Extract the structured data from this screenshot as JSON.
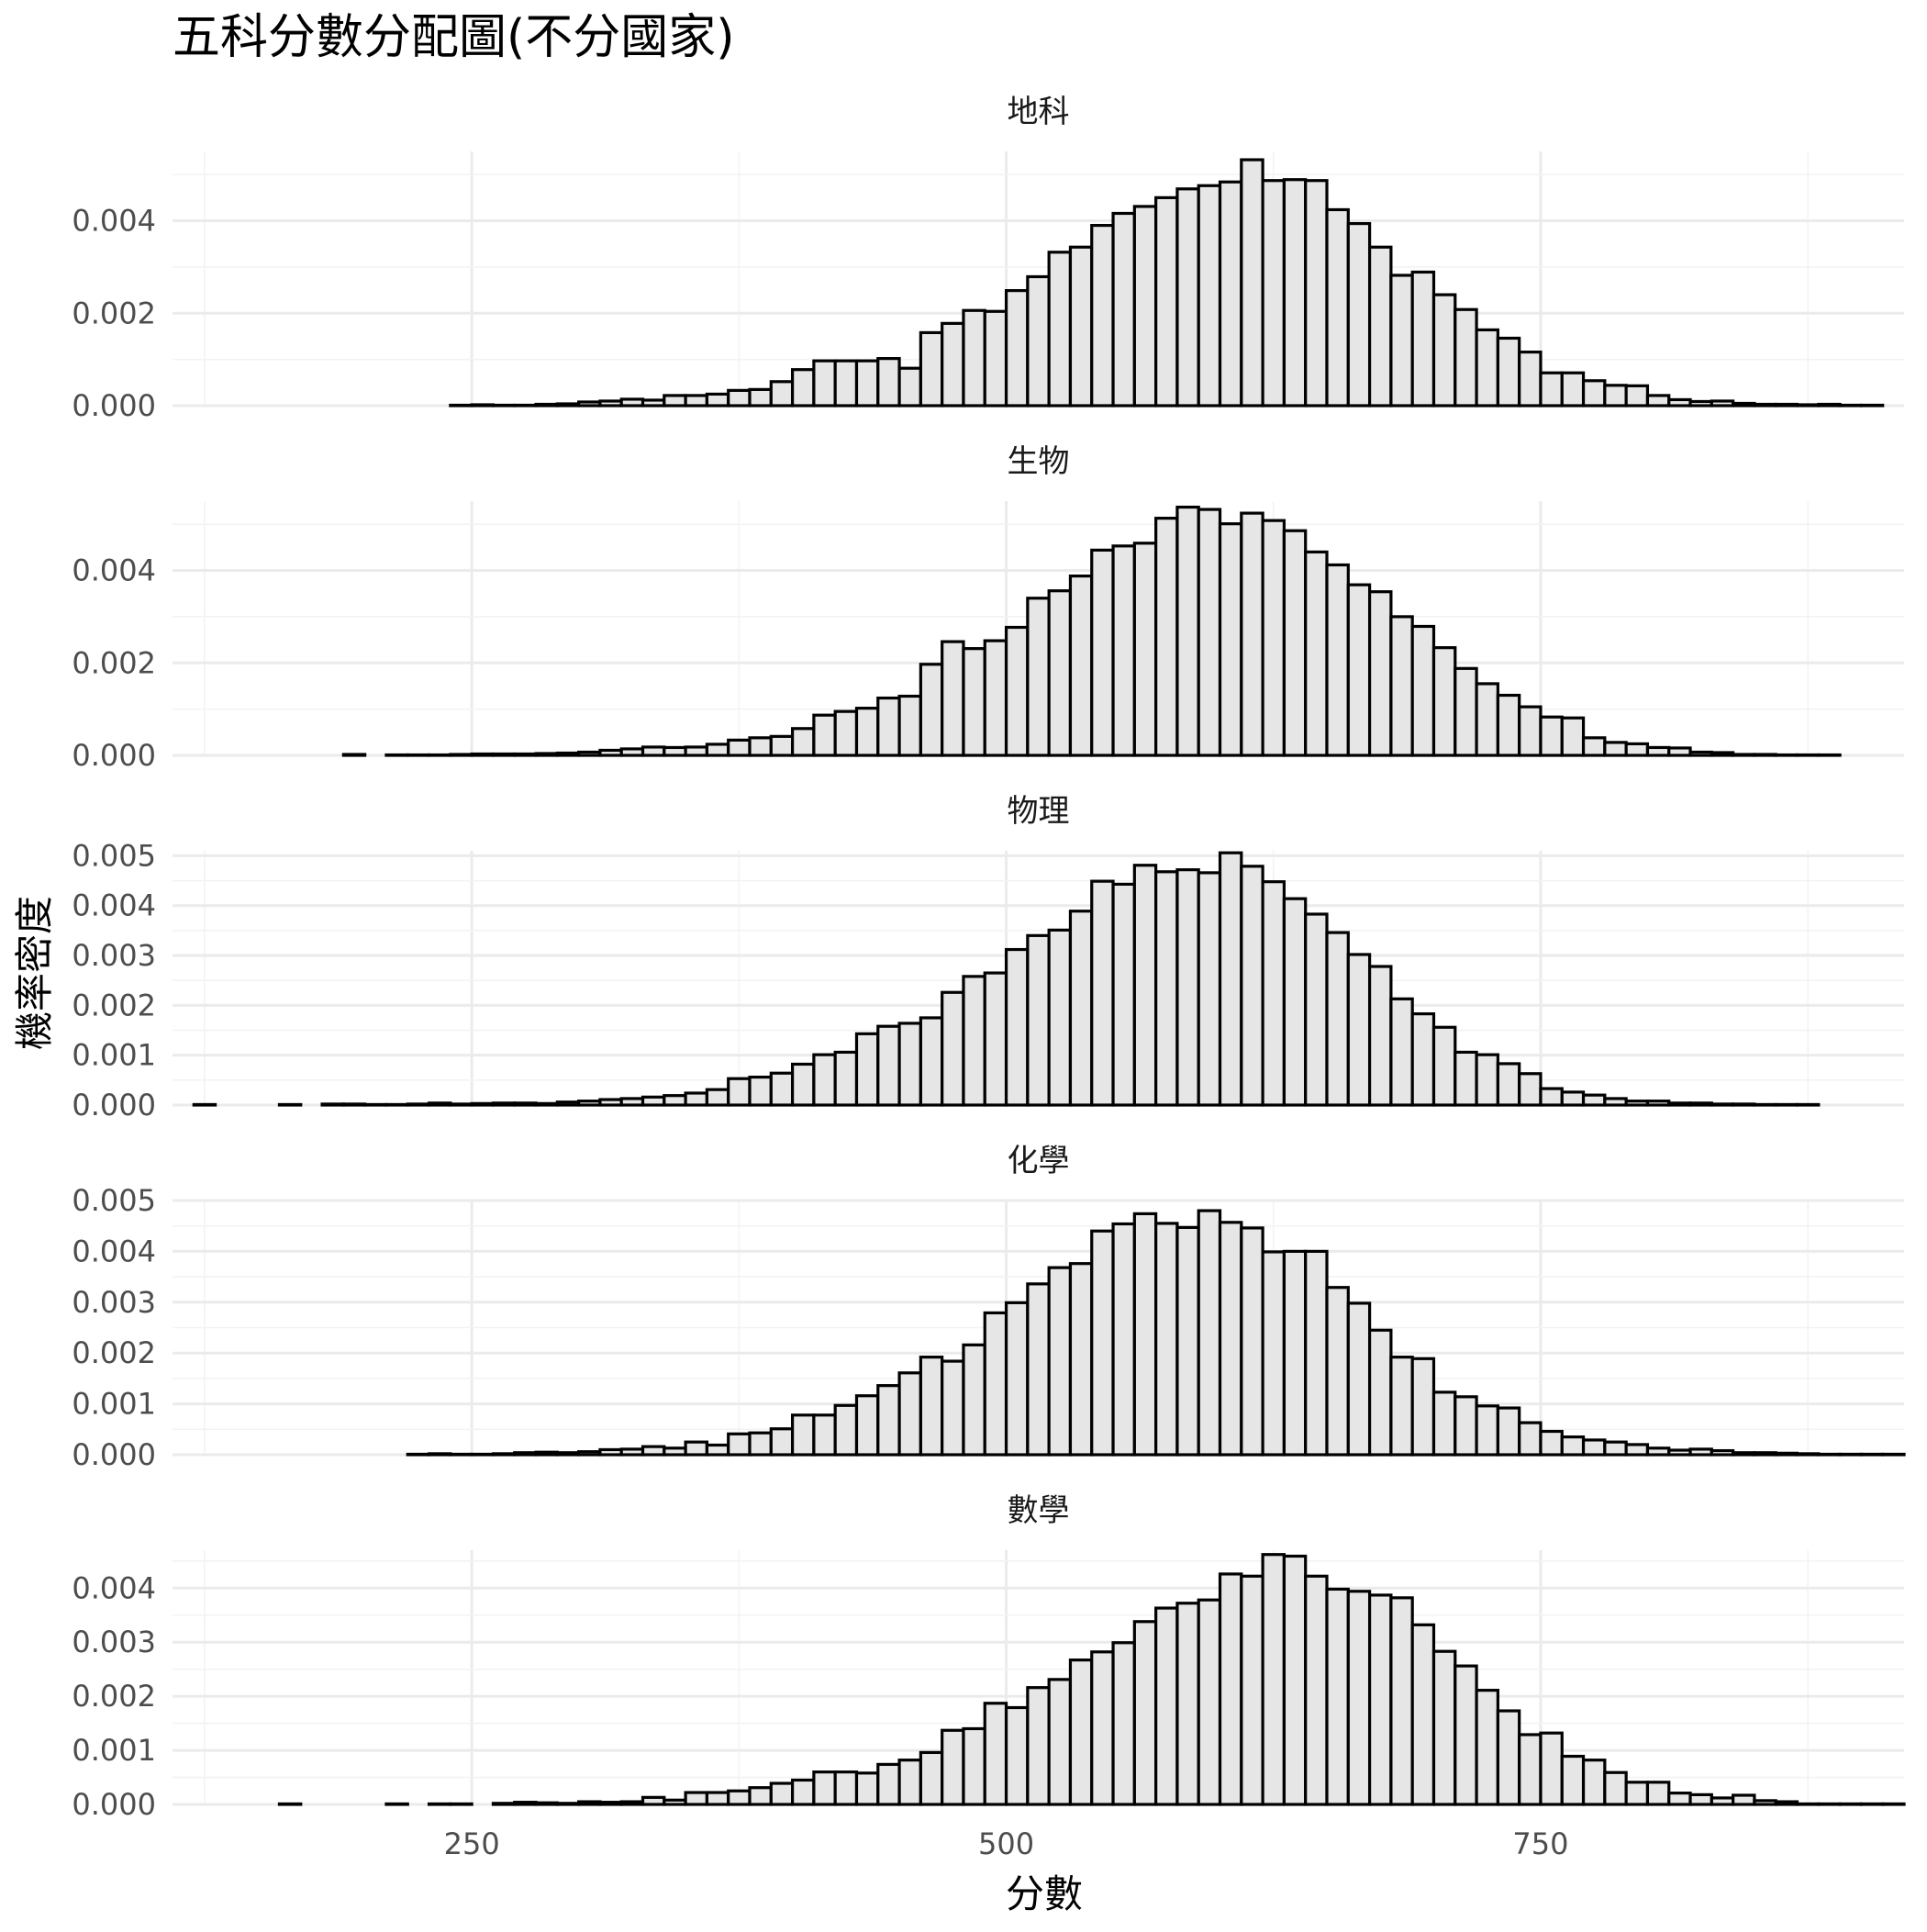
{
  "chart_data": {
    "type": "bar",
    "title": "五科分數分配圖(不分國家)",
    "xlabel": "分數",
    "ylabel": "機率密度",
    "xlim": [
      110,
      920
    ],
    "x_ticks": [
      250,
      500,
      750
    ],
    "x_tick_labels": [
      "250",
      "500",
      "750"
    ],
    "bin_width": 10,
    "grid": true,
    "legend": "none",
    "colors": {
      "bar_fill": "#e6e6e6",
      "bar_stroke": "#000000",
      "grid": "#ebebeb"
    },
    "panels": [
      {
        "name": "地科",
        "ylim": [
          0,
          0.0055
        ],
        "y_ticks": [
          0,
          0.002,
          0.004
        ],
        "y_tick_labels": [
          "0.000",
          "0.002",
          "0.004"
        ],
        "bin_starts": [
          120,
          130,
          140,
          150,
          160,
          170,
          180,
          190,
          200,
          210,
          220,
          230,
          240,
          250,
          260,
          270,
          280,
          290,
          300,
          310,
          320,
          330,
          340,
          350,
          360,
          370,
          380,
          390,
          400,
          410,
          420,
          430,
          440,
          450,
          460,
          470,
          480,
          490,
          500,
          510,
          520,
          530,
          540,
          550,
          560,
          570,
          580,
          590,
          600,
          610,
          620,
          630,
          640,
          650,
          660,
          670,
          680,
          690,
          700,
          710,
          720,
          730,
          740,
          750,
          760,
          770,
          780,
          790,
          800,
          810,
          820,
          830,
          840,
          850,
          860,
          870,
          880,
          890,
          900
        ],
        "density": [
          0,
          0,
          0,
          0,
          0,
          0,
          0,
          0,
          0,
          0,
          0,
          0,
          1e-05,
          2e-05,
          1e-05,
          1e-05,
          3e-05,
          4e-05,
          8e-05,
          0.0001,
          0.00014,
          0.00012,
          0.00022,
          0.00022,
          0.00025,
          0.00033,
          0.00035,
          0.00052,
          0.00078,
          0.00097,
          0.00097,
          0.00097,
          0.00102,
          0.00081,
          0.00158,
          0.00178,
          0.00206,
          0.00204,
          0.00249,
          0.00279,
          0.00332,
          0.00343,
          0.0039,
          0.00416,
          0.00431,
          0.0045,
          0.00469,
          0.00476,
          0.00484,
          0.00532,
          0.00487,
          0.00489,
          0.00487,
          0.00424,
          0.00394,
          0.00343,
          0.00282,
          0.00289,
          0.0024,
          0.00208,
          0.00164,
          0.00146,
          0.00116,
          0.00071,
          0.00071,
          0.00054,
          0.00044,
          0.00043,
          0.00022,
          0.00013,
          9e-05,
          0.0001,
          5e-05,
          3e-05,
          3e-05,
          2e-05,
          3e-05,
          1e-05,
          1e-05
        ]
      },
      {
        "name": "生物",
        "ylim": [
          0,
          0.0055
        ],
        "y_ticks": [
          0,
          0.002,
          0.004
        ],
        "y_tick_labels": [
          "0.000",
          "0.002",
          "0.004"
        ],
        "bin_starts": [
          120,
          130,
          140,
          150,
          160,
          170,
          180,
          190,
          200,
          210,
          220,
          230,
          240,
          250,
          260,
          270,
          280,
          290,
          300,
          310,
          320,
          330,
          340,
          350,
          360,
          370,
          380,
          390,
          400,
          410,
          420,
          430,
          440,
          450,
          460,
          470,
          480,
          490,
          500,
          510,
          520,
          530,
          540,
          550,
          560,
          570,
          580,
          590,
          600,
          610,
          620,
          630,
          640,
          650,
          660,
          670,
          680,
          690,
          700,
          710,
          720,
          730,
          740,
          750,
          760,
          770,
          780,
          790,
          800,
          810,
          820,
          830,
          840,
          850,
          860,
          870,
          880,
          890,
          900
        ],
        "density": [
          0,
          0,
          0,
          0,
          0,
          0,
          0,
          2e-05,
          0,
          1e-05,
          1e-05,
          1e-05,
          2e-05,
          3e-05,
          3e-05,
          3e-05,
          4e-05,
          5e-05,
          7e-05,
          0.00011,
          0.00014,
          0.00018,
          0.00017,
          0.00018,
          0.00024,
          0.00033,
          0.00038,
          0.00041,
          0.00058,
          0.00087,
          0.00095,
          0.00102,
          0.00124,
          0.00128,
          0.00197,
          0.00246,
          0.00231,
          0.00248,
          0.00277,
          0.0034,
          0.00356,
          0.00388,
          0.00444,
          0.00453,
          0.00459,
          0.00513,
          0.00537,
          0.00532,
          0.00501,
          0.00524,
          0.00508,
          0.00486,
          0.0044,
          0.00412,
          0.00369,
          0.00354,
          0.003,
          0.00279,
          0.00233,
          0.00188,
          0.00155,
          0.0013,
          0.00105,
          0.00083,
          0.00081,
          0.00038,
          0.00028,
          0.00025,
          0.00017,
          0.00016,
          7e-05,
          6e-05,
          2e-05,
          2e-05,
          1e-05,
          1e-05,
          1e-05,
          0,
          0
        ]
      },
      {
        "name": "物理",
        "ylim": [
          0,
          0.0051
        ],
        "y_ticks": [
          0,
          0.001,
          0.002,
          0.003,
          0.004,
          0.005
        ],
        "y_tick_labels": [
          "0.000",
          "0.001",
          "0.002",
          "0.003",
          "0.004",
          "0.005"
        ],
        "bin_starts": [
          120,
          130,
          140,
          150,
          160,
          170,
          180,
          190,
          200,
          210,
          220,
          230,
          240,
          250,
          260,
          270,
          280,
          290,
          300,
          310,
          320,
          330,
          340,
          350,
          360,
          370,
          380,
          390,
          400,
          410,
          420,
          430,
          440,
          450,
          460,
          470,
          480,
          490,
          500,
          510,
          520,
          530,
          540,
          550,
          560,
          570,
          580,
          590,
          600,
          610,
          620,
          630,
          640,
          650,
          660,
          670,
          680,
          690,
          700,
          710,
          720,
          730,
          740,
          750,
          760,
          770,
          780,
          790,
          800,
          810,
          820,
          830,
          840,
          850,
          860,
          870,
          880,
          890,
          900
        ],
        "density": [
          1e-05,
          0,
          0,
          0,
          1e-05,
          0,
          2e-05,
          2e-05,
          1e-05,
          1e-05,
          2e-05,
          4e-05,
          2e-05,
          3e-05,
          4e-05,
          4e-05,
          3e-05,
          6e-05,
          8e-05,
          0.00011,
          0.00013,
          0.00016,
          0.00019,
          0.00024,
          0.00031,
          0.00053,
          0.00056,
          0.00064,
          0.00082,
          0.00101,
          0.00106,
          0.00143,
          0.00158,
          0.00164,
          0.00175,
          0.00226,
          0.00258,
          0.00265,
          0.00312,
          0.0034,
          0.00351,
          0.00389,
          0.00449,
          0.00443,
          0.00481,
          0.00468,
          0.00472,
          0.00466,
          0.00506,
          0.00479,
          0.00448,
          0.00414,
          0.00383,
          0.00346,
          0.00302,
          0.00278,
          0.00213,
          0.00183,
          0.00156,
          0.00106,
          0.00101,
          0.00083,
          0.00063,
          0.00033,
          0.00026,
          0.0002,
          0.00013,
          8e-05,
          8e-05,
          4e-05,
          4e-05,
          2e-05,
          2e-05,
          1e-05,
          1e-05,
          1e-05,
          0,
          0,
          0
        ]
      },
      {
        "name": "化學",
        "ylim": [
          0,
          0.005
        ],
        "y_ticks": [
          0,
          0.001,
          0.002,
          0.003,
          0.004,
          0.005
        ],
        "y_tick_labels": [
          "0.000",
          "0.001",
          "0.002",
          "0.003",
          "0.004",
          "0.005"
        ],
        "bin_starts": [
          120,
          130,
          140,
          150,
          160,
          170,
          180,
          190,
          200,
          210,
          220,
          230,
          240,
          250,
          260,
          270,
          280,
          290,
          300,
          310,
          320,
          330,
          340,
          350,
          360,
          370,
          380,
          390,
          400,
          410,
          420,
          430,
          440,
          450,
          460,
          470,
          480,
          490,
          500,
          510,
          520,
          530,
          540,
          550,
          560,
          570,
          580,
          590,
          600,
          610,
          620,
          630,
          640,
          650,
          660,
          670,
          680,
          690,
          700,
          710,
          720,
          730,
          740,
          750,
          760,
          770,
          780,
          790,
          800,
          810,
          820,
          830,
          840,
          850,
          860,
          870,
          880,
          890,
          900,
          910
        ],
        "density": [
          0,
          0,
          0,
          0,
          0,
          0,
          0,
          0,
          0,
          0,
          1e-05,
          2e-05,
          1e-05,
          1e-05,
          2e-05,
          4e-05,
          5e-05,
          4e-05,
          6e-05,
          0.0001,
          0.00011,
          0.00016,
          0.00013,
          0.00025,
          0.00019,
          0.00041,
          0.00043,
          0.00051,
          0.00078,
          0.00078,
          0.00097,
          0.00116,
          0.00136,
          0.00161,
          0.00192,
          0.00184,
          0.00216,
          0.00279,
          0.00299,
          0.00336,
          0.00368,
          0.00376,
          0.0044,
          0.00454,
          0.00474,
          0.00455,
          0.00447,
          0.0048,
          0.00457,
          0.00446,
          0.00399,
          0.004,
          0.004,
          0.00329,
          0.00298,
          0.00245,
          0.00192,
          0.00189,
          0.00123,
          0.00114,
          0.00096,
          0.00092,
          0.00063,
          0.00046,
          0.00035,
          0.00029,
          0.00025,
          0.0002,
          0.00013,
          9e-05,
          0.00011,
          8e-05,
          4e-05,
          4e-05,
          3e-05,
          2e-05,
          1e-05,
          1e-05,
          1e-05,
          1e-05
        ]
      },
      {
        "name": "數學",
        "ylim": [
          0,
          0.0047
        ],
        "y_ticks": [
          0,
          0.001,
          0.002,
          0.003,
          0.004
        ],
        "y_tick_labels": [
          "0.000",
          "0.001",
          "0.002",
          "0.003",
          "0.004"
        ],
        "bin_starts": [
          110,
          120,
          130,
          140,
          150,
          160,
          170,
          180,
          190,
          200,
          210,
          220,
          230,
          240,
          250,
          260,
          270,
          280,
          290,
          300,
          310,
          320,
          330,
          340,
          350,
          360,
          370,
          380,
          390,
          400,
          410,
          420,
          430,
          440,
          450,
          460,
          470,
          480,
          490,
          500,
          510,
          520,
          530,
          540,
          550,
          560,
          570,
          580,
          590,
          600,
          610,
          620,
          630,
          640,
          650,
          660,
          670,
          680,
          690,
          700,
          710,
          720,
          730,
          740,
          750,
          760,
          770,
          780,
          790,
          800,
          810,
          820,
          830,
          840,
          850,
          860,
          870,
          880,
          890,
          900,
          910
        ],
        "density": [
          0,
          0,
          0,
          0,
          0,
          1e-05,
          0,
          0,
          0,
          0,
          1e-05,
          0,
          1e-05,
          1e-05,
          0,
          2e-05,
          4e-05,
          3e-05,
          2e-05,
          5e-05,
          4e-05,
          5e-05,
          0.00013,
          8e-05,
          0.00022,
          0.00022,
          0.00025,
          0.00031,
          0.00039,
          0.00045,
          0.0006,
          0.0006,
          0.00058,
          0.00074,
          0.00082,
          0.00096,
          0.00137,
          0.0014,
          0.00187,
          0.00179,
          0.00216,
          0.00231,
          0.00267,
          0.00282,
          0.00299,
          0.00338,
          0.00363,
          0.00372,
          0.00378,
          0.00426,
          0.00422,
          0.00462,
          0.00459,
          0.00422,
          0.00398,
          0.00394,
          0.00387,
          0.00382,
          0.00332,
          0.00283,
          0.00256,
          0.00211,
          0.00173,
          0.00129,
          0.00132,
          0.00089,
          0.00082,
          0.00059,
          0.00041,
          0.00041,
          0.00021,
          0.00018,
          0.00012,
          0.00017,
          7e-05,
          5e-05,
          1e-05,
          1e-05,
          1e-05,
          1e-05,
          1e-05
        ]
      }
    ]
  }
}
